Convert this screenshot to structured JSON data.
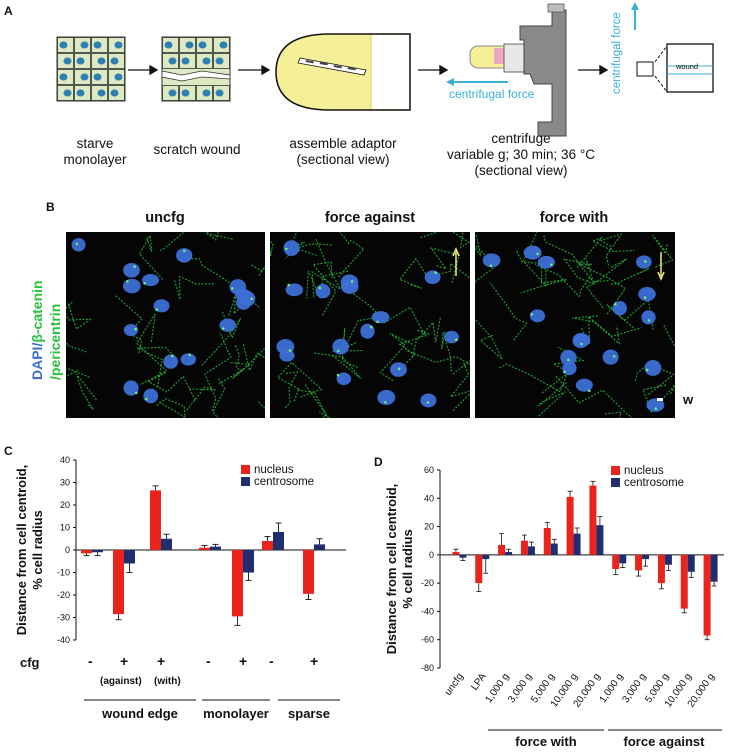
{
  "panel_a": {
    "label": "A",
    "steps": [
      {
        "line1": "starve",
        "line2": "monolayer"
      },
      {
        "line1": "scratch wound",
        "line2": ""
      },
      {
        "line1": "assemble adaptor",
        "line2": "(sectional view)"
      },
      {
        "line1": "centrifuge",
        "line2": "variable g; 30 min; 36 °C",
        "line3": "(sectional view)"
      }
    ],
    "centrifugal_force_label": "centrifugal force",
    "centrifugal_force_vertical_label": "centrifugal force",
    "wound_label": "wound",
    "colors": {
      "arrow_blue": "#3ab0d4",
      "adaptor_yellow": "#f6ef9a",
      "centrifuge_gray": "#8a8a8a"
    }
  },
  "panel_b": {
    "label": "B",
    "columns": [
      "uncfg",
      "force against",
      "force with"
    ],
    "ylabel_dapi": "DAPI/",
    "ylabel_beta": "β-catenin",
    "ylabel_peri": "/pericentrin",
    "w_label": "w",
    "colors": {
      "dapi": "#3c6fd6",
      "catenin": "#27c13b",
      "arrow": "#f5ee7a"
    }
  },
  "panel_c": {
    "label": "C",
    "cfg_label": "cfg",
    "signs": [
      "-",
      "+",
      "+",
      "-",
      "+",
      "-",
      "+"
    ],
    "against_label": "(against)",
    "with_label": "(with)",
    "groups": [
      "wound edge",
      "monolayer",
      "sparse"
    ]
  },
  "panel_d": {
    "label": "D",
    "groups": [
      "force with",
      "force against"
    ]
  },
  "chart_data": [
    {
      "type": "bar",
      "panel": "C",
      "ylabel": "Distance from cell centroid, % cell radius",
      "ylim": [
        -40,
        40
      ],
      "yticks": [
        40,
        30,
        20,
        10,
        0,
        -10,
        -20,
        -30,
        -40
      ],
      "legend_position": "top-right",
      "series": [
        {
          "name": "nucleus",
          "color": "#e8241c",
          "values": [
            -1.5,
            -28.5,
            26.5,
            1,
            -29.5,
            4,
            -19.5
          ],
          "errors": [
            1,
            2.5,
            2,
            1,
            4,
            2,
            2.5
          ]
        },
        {
          "name": "centrosome",
          "color": "#1f2e6e",
          "values": [
            -1,
            -6,
            5,
            1.5,
            -10,
            8,
            2.5
          ],
          "errors": [
            1.5,
            4,
            2,
            1,
            3.5,
            4,
            2.5
          ]
        }
      ]
    },
    {
      "type": "bar",
      "panel": "D",
      "ylabel": "Distance from cell centroid, % cell radius",
      "ylim": [
        -80,
        60
      ],
      "yticks": [
        60,
        40,
        20,
        0,
        -20,
        -40,
        -60,
        -80
      ],
      "categories": [
        "uncfg",
        "LPA",
        "1,000 g",
        "3,000 g",
        "5,000 g",
        "10,000 g",
        "20,000 g",
        "1,000 g",
        "3,000 g",
        "5,000 g",
        "10,000 g",
        "20,000 g"
      ],
      "legend_position": "top-right",
      "series": [
        {
          "name": "nucleus",
          "color": "#e8241c",
          "values": [
            2,
            -20,
            7,
            10,
            19,
            41,
            49,
            -10,
            -11,
            -20,
            -38,
            -57
          ],
          "errors": [
            2,
            6,
            8,
            4,
            4,
            4,
            3,
            4,
            4,
            4,
            3,
            3
          ]
        },
        {
          "name": "centrosome",
          "color": "#1f2e6e",
          "values": [
            -2,
            -3,
            2,
            6,
            8,
            15,
            21,
            -6,
            -3,
            -7,
            -12,
            -19
          ],
          "errors": [
            2,
            10,
            2,
            3,
            3,
            4,
            6,
            3,
            5,
            4,
            4,
            3
          ]
        }
      ]
    }
  ]
}
